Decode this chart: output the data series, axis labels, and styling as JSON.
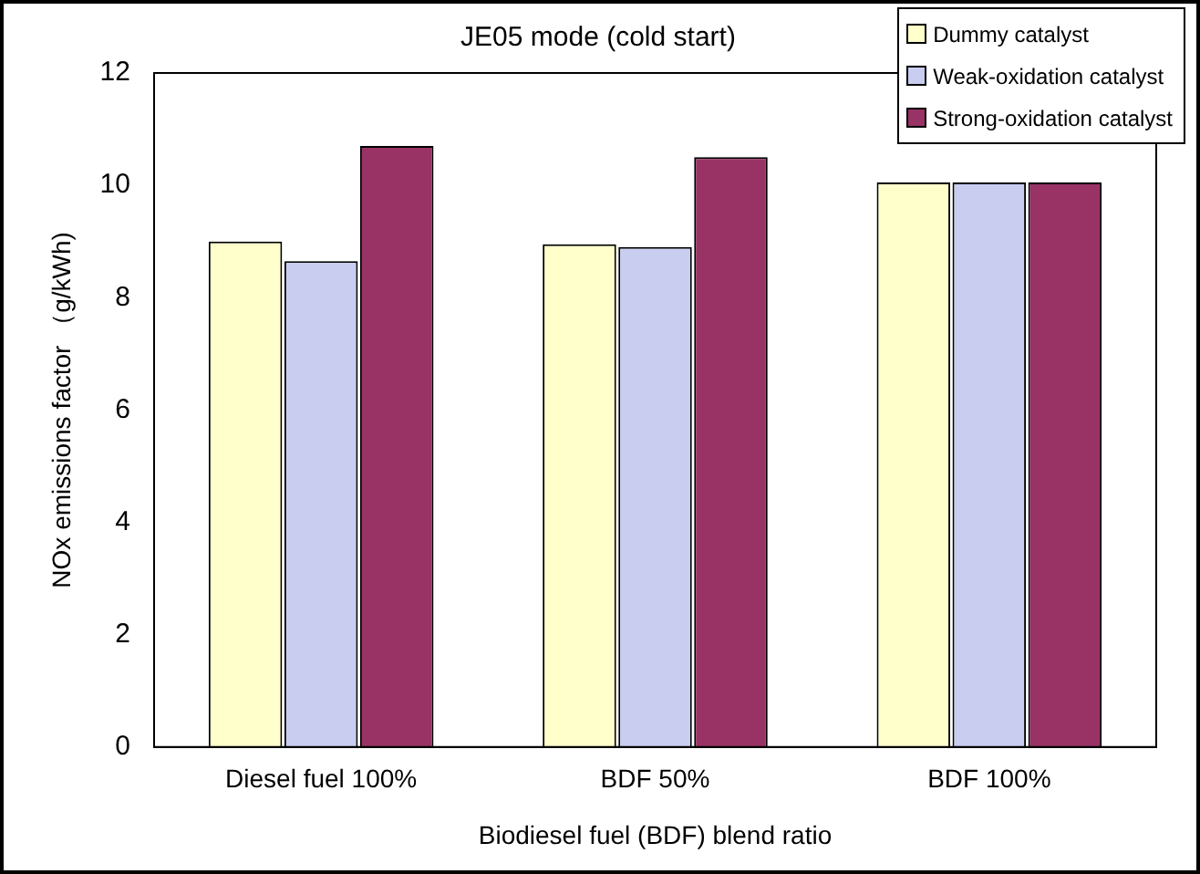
{
  "chart_data": {
    "type": "bar",
    "title": "JE05 mode (cold start)",
    "xlabel": "Biodiesel fuel (BDF) blend ratio",
    "ylabel": "NOx emissions factor （g/kWh)",
    "categories": [
      "Diesel fuel 100%",
      "BDF 50%",
      "BDF 100%"
    ],
    "series": [
      {
        "name": "Dummy catalyst",
        "color": "#ffffcc",
        "values": [
          9.0,
          8.95,
          10.05
        ]
      },
      {
        "name": "Weak-oxidation catalyst",
        "color": "#c9cdf0",
        "values": [
          8.65,
          8.9,
          10.05
        ]
      },
      {
        "name": "Strong-oxidation catalyst",
        "color": "#993366",
        "values": [
          10.7,
          10.5,
          10.05
        ]
      }
    ],
    "ylim": [
      0,
      12
    ],
    "yticks": [
      0,
      2,
      4,
      6,
      8,
      10,
      12
    ],
    "grid": false,
    "legend": "top right"
  }
}
